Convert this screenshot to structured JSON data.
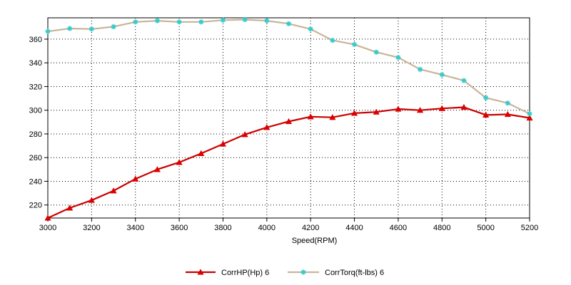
{
  "chart_data": {
    "type": "line",
    "xlabel": "Speed(RPM)",
    "ylabel": "",
    "xlim": [
      3000,
      5200
    ],
    "ylim": [
      209,
      378
    ],
    "x_ticks": [
      3000,
      3200,
      3400,
      3600,
      3800,
      4000,
      4200,
      4400,
      4600,
      4800,
      5000,
      5200
    ],
    "y_ticks": [
      220,
      240,
      260,
      280,
      300,
      320,
      340,
      360
    ],
    "grid": true,
    "legend_position": "bottom",
    "x": [
      3000,
      3100,
      3200,
      3300,
      3400,
      3500,
      3600,
      3700,
      3800,
      3900,
      4000,
      4100,
      4200,
      4300,
      4400,
      4500,
      4600,
      4700,
      4800,
      4900,
      5000,
      5100,
      5200
    ],
    "series": [
      {
        "name": "CorrHP(Hp)  6",
        "color": "#cc0000",
        "marker": "triangle",
        "marker_color": "#dd0000",
        "values": [
          209,
          217.5,
          224,
          232,
          242,
          250,
          256,
          263.5,
          271.5,
          279.5,
          285.5,
          290.5,
          294.5,
          294,
          297.5,
          298.5,
          301,
          300,
          301.5,
          302.5,
          296,
          296.5,
          293.5
        ]
      },
      {
        "name": "CorrTorq(ft-lbs)  6",
        "color": "#c8b49a",
        "marker": "star",
        "marker_color": "#33cccc",
        "values": [
          366.5,
          369,
          368.5,
          370.5,
          374.5,
          375.5,
          374.5,
          374.5,
          376,
          376.5,
          375.5,
          373,
          368.5,
          359,
          355.5,
          349,
          344.5,
          334.5,
          330,
          325,
          310.5,
          306,
          297
        ]
      }
    ]
  }
}
